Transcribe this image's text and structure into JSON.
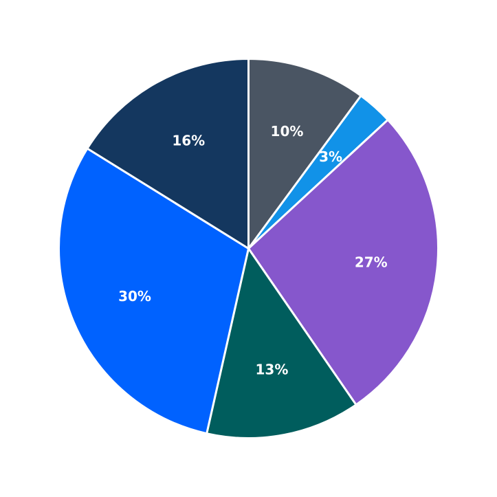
{
  "chart_data": {
    "type": "pie",
    "values": [
      10,
      3,
      27,
      13,
      30,
      16
    ],
    "labels": [
      "10%",
      "3%",
      "27%",
      "13%",
      "30%",
      "16%"
    ],
    "colors": [
      "#4a5563",
      "#1192e8",
      "#8657cc",
      "#005d5d",
      "#0062ff",
      "#14375f"
    ],
    "slice_names": [
      "slice-gray",
      "slice-light-blue",
      "slice-purple",
      "slice-teal",
      "slice-blue",
      "slice-navy"
    ],
    "start_angle_deg": 90,
    "direction": "clockwise",
    "legend": "none",
    "title": ""
  }
}
